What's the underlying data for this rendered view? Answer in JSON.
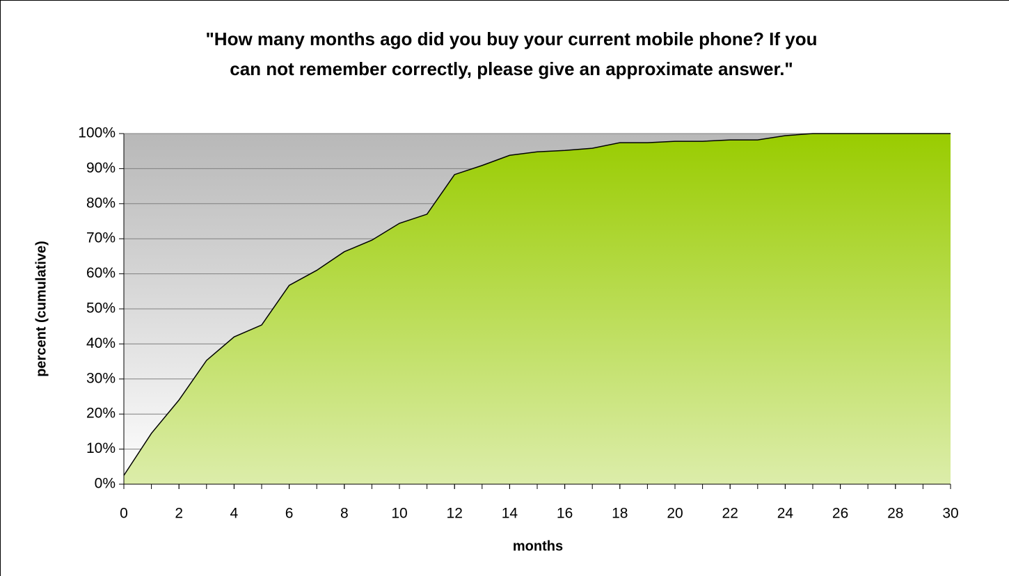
{
  "chart_data": {
    "type": "area",
    "title": [
      "\"How many months ago did you buy your current mobile phone? If you",
      "can not remember correctly, please give an approximate answer.\""
    ],
    "x_label": "months",
    "y_label": "percent (cumulative)",
    "x": [
      0,
      1,
      2,
      3,
      4,
      5,
      6,
      7,
      8,
      9,
      10,
      11,
      12,
      13,
      14,
      15,
      16,
      17,
      18,
      19,
      20,
      21,
      22,
      23,
      24,
      25,
      26,
      27,
      28,
      29,
      30
    ],
    "values": [
      2.5,
      14.5,
      24,
      35.3,
      42,
      45.4,
      56.7,
      61,
      66.3,
      69.6,
      74.4,
      77,
      88.3,
      90.9,
      93.8,
      94.8,
      95.2,
      95.8,
      97.4,
      97.4,
      97.8,
      97.8,
      98.2,
      98.2,
      99.4,
      100,
      100,
      100,
      100,
      100,
      100
    ],
    "color": "#99cc00",
    "xlim": [
      0,
      30
    ],
    "xticks": [
      0,
      2,
      4,
      6,
      8,
      10,
      12,
      14,
      16,
      18,
      20,
      22,
      24,
      26,
      28,
      30
    ],
    "ylim": [
      0,
      100
    ],
    "yticks": [
      {
        "value": 0,
        "label": "0%"
      },
      {
        "value": 10,
        "label": "10%"
      },
      {
        "value": 20,
        "label": "20%"
      },
      {
        "value": 30,
        "label": "30%"
      },
      {
        "value": 40,
        "label": "40%"
      },
      {
        "value": 50,
        "label": "50%"
      },
      {
        "value": 60,
        "label": "60%"
      },
      {
        "value": 70,
        "label": "70%"
      },
      {
        "value": 80,
        "label": "80%"
      },
      {
        "value": 90,
        "label": "90%"
      },
      {
        "value": 100,
        "label": "100%"
      }
    ],
    "grid": true
  }
}
